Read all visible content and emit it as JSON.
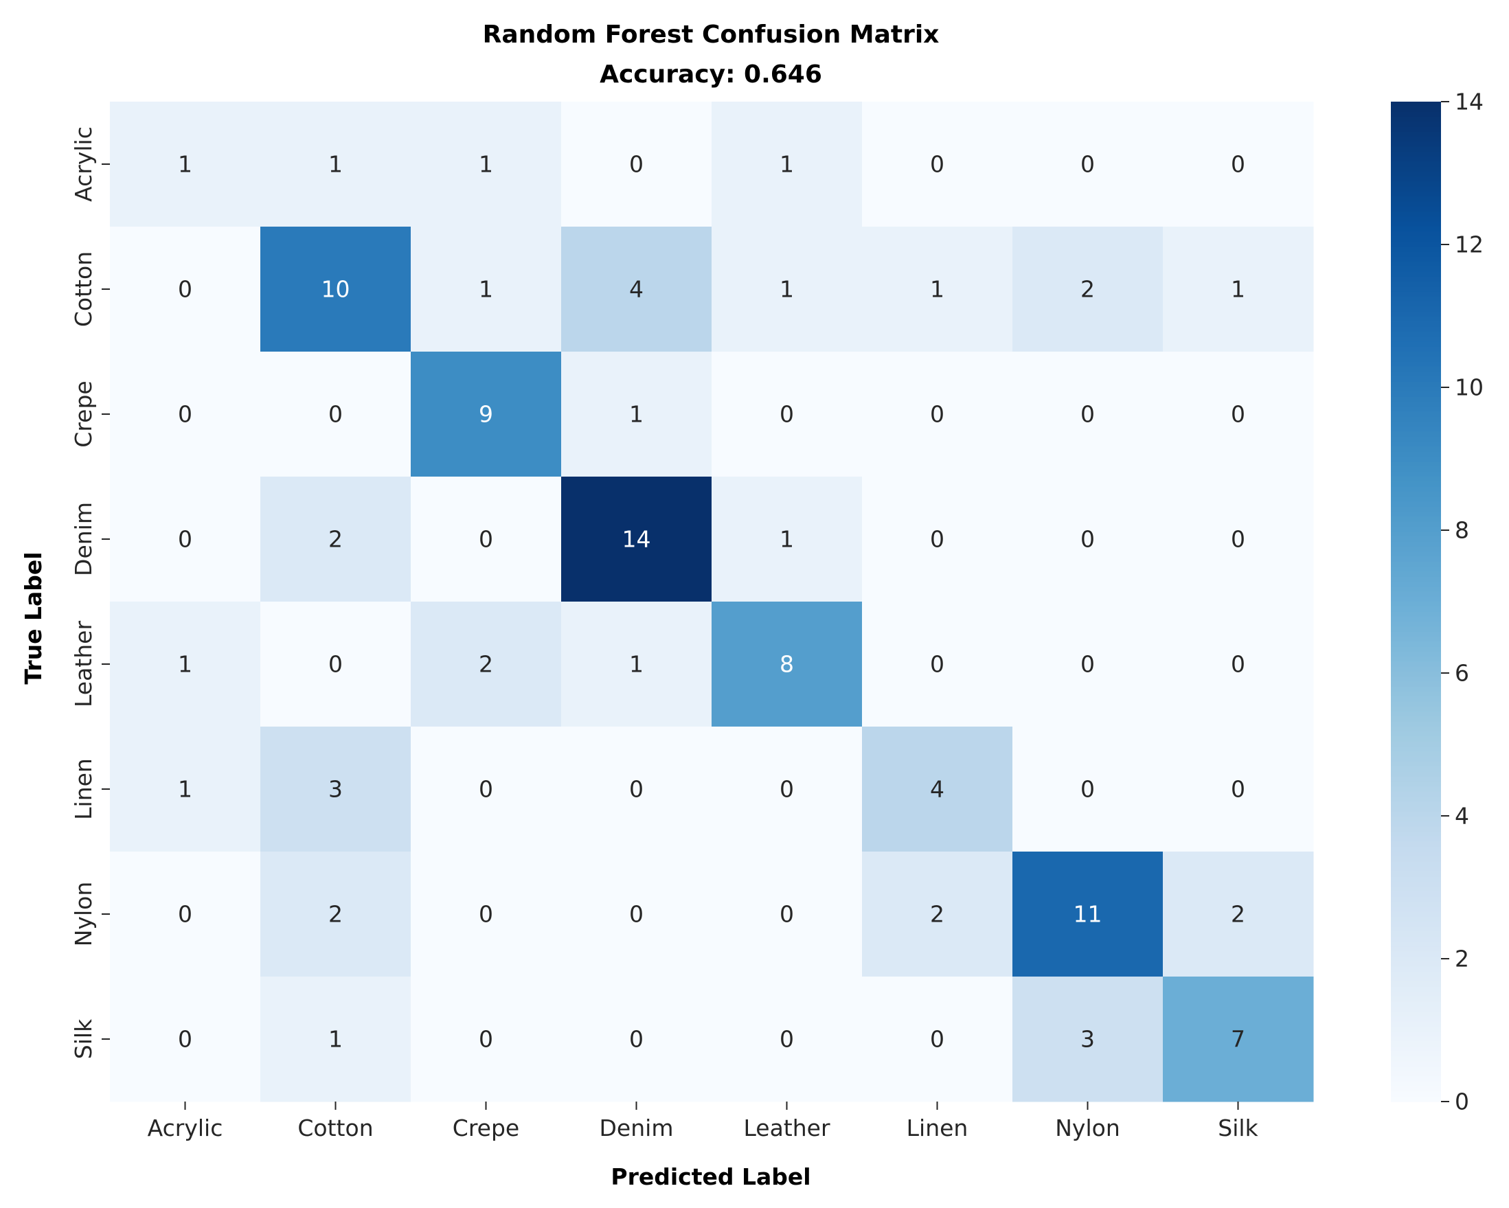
{
  "chart_data": {
    "type": "heatmap",
    "title": "Random Forest Confusion Matrix",
    "subtitle": "Accuracy: 0.646",
    "xlabel": "Predicted Label",
    "ylabel": "True Label",
    "x_categories": [
      "Acrylic",
      "Cotton",
      "Crepe",
      "Denim",
      "Leather",
      "Linen",
      "Nylon",
      "Silk"
    ],
    "y_categories": [
      "Acrylic",
      "Cotton",
      "Crepe",
      "Denim",
      "Leather",
      "Linen",
      "Nylon",
      "Silk"
    ],
    "values": [
      [
        1,
        1,
        1,
        0,
        1,
        0,
        0,
        0
      ],
      [
        0,
        10,
        1,
        4,
        1,
        1,
        2,
        1
      ],
      [
        0,
        0,
        9,
        1,
        0,
        0,
        0,
        0
      ],
      [
        0,
        2,
        0,
        14,
        1,
        0,
        0,
        0
      ],
      [
        1,
        0,
        2,
        1,
        8,
        0,
        0,
        0
      ],
      [
        1,
        3,
        0,
        0,
        0,
        4,
        0,
        0
      ],
      [
        0,
        2,
        0,
        0,
        0,
        2,
        11,
        2
      ],
      [
        0,
        1,
        0,
        0,
        0,
        0,
        3,
        7
      ]
    ],
    "colormap": "Blues",
    "vmin": 0,
    "vmax": 14,
    "colorbar_ticks": [
      0,
      2,
      4,
      6,
      8,
      10,
      12,
      14
    ]
  }
}
